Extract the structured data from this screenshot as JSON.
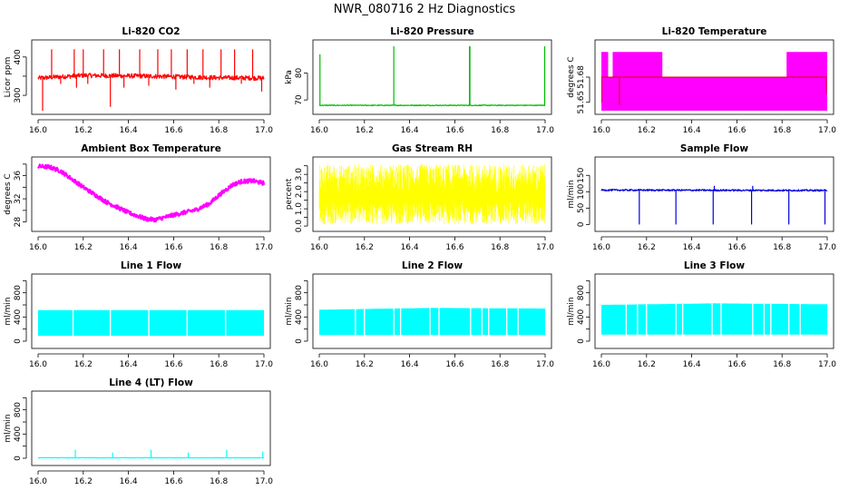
{
  "page": {
    "title": "NWR_080716  2 Hz Diagnostics"
  },
  "chart_data": [
    {
      "id": "co2",
      "type": "line",
      "title": "Li-820 CO2",
      "xlabel": "",
      "ylabel": "Licor ppm",
      "color": "#ff0000",
      "xlim": [
        16.0,
        17.0
      ],
      "xticks": [
        16.0,
        16.2,
        16.4,
        16.6,
        16.8,
        17.0
      ],
      "ylim": [
        260,
        435
      ],
      "yticks": [
        300,
        350,
        400
      ],
      "yticklabels": [
        "300",
        "",
        "400"
      ],
      "baseline": [
        [
          16.0,
          345
        ],
        [
          16.2,
          352
        ],
        [
          16.5,
          350
        ],
        [
          16.8,
          346
        ],
        [
          17.0,
          345
        ]
      ],
      "noise": 6,
      "spikes": [
        [
          16.02,
          260
        ],
        [
          16.06,
          420
        ],
        [
          16.1,
          330
        ],
        [
          16.16,
          420
        ],
        [
          16.17,
          320
        ],
        [
          16.2,
          420
        ],
        [
          16.22,
          330
        ],
        [
          16.29,
          420
        ],
        [
          16.32,
          270
        ],
        [
          16.36,
          420
        ],
        [
          16.38,
          320
        ],
        [
          16.45,
          420
        ],
        [
          16.49,
          325
        ],
        [
          16.53,
          420
        ],
        [
          16.59,
          420
        ],
        [
          16.61,
          315
        ],
        [
          16.66,
          420
        ],
        [
          16.69,
          330
        ],
        [
          16.73,
          420
        ],
        [
          16.76,
          320
        ],
        [
          16.81,
          420
        ],
        [
          16.87,
          420
        ],
        [
          16.9,
          330
        ],
        [
          16.95,
          420
        ],
        [
          16.99,
          310
        ]
      ]
    },
    {
      "id": "pressure",
      "type": "line",
      "title": "Li-820 Pressure",
      "xlabel": "",
      "ylabel": "kPa",
      "color": "#00bb00",
      "xlim": [
        16.0,
        17.0
      ],
      "xticks": [
        16.0,
        16.2,
        16.4,
        16.6,
        16.8,
        17.0
      ],
      "ylim": [
        66,
        91
      ],
      "yticks": [
        70,
        80
      ],
      "yticklabels": [
        "70",
        "80"
      ],
      "baseline": [
        [
          16.0,
          68.0
        ],
        [
          17.0,
          68.0
        ]
      ],
      "noise": 0.15,
      "spikes": [
        [
          16.003,
          87
        ],
        [
          16.33,
          90
        ],
        [
          16.665,
          90
        ],
        [
          16.667,
          90
        ],
        [
          16.998,
          90
        ]
      ]
    },
    {
      "id": "temperature",
      "type": "area",
      "title": "Li-820 Temperature",
      "xlabel": "",
      "ylabel": "degrees C",
      "color": "#ff00ff",
      "xlim": [
        16.0,
        17.0
      ],
      "xticks": [
        16.0,
        16.2,
        16.4,
        16.6,
        16.8,
        17.0
      ],
      "ylim": [
        51.64,
        51.72
      ],
      "yticks": [
        51.65,
        51.68
      ],
      "yticklabels": [
        "51.65",
        "51.68"
      ],
      "fill_bottom": 51.64,
      "level_low": 51.68,
      "level_high": 51.71,
      "high_ranges": [
        [
          16.0,
          16.03
        ],
        [
          16.05,
          16.27
        ],
        [
          16.82,
          17.0
        ]
      ],
      "red_marks": [
        [
          16.002,
          51.65
        ],
        [
          16.08,
          51.647
        ],
        [
          16.996,
          51.66
        ]
      ]
    },
    {
      "id": "ambient",
      "type": "line",
      "title": "Ambient Box Temperature",
      "xlabel": "",
      "ylabel": "degrees C",
      "color": "#ff00ff",
      "xlim": [
        16.0,
        17.0
      ],
      "xticks": [
        16.0,
        16.2,
        16.4,
        16.6,
        16.8,
        17.0
      ],
      "ylim": [
        27.0,
        38.6
      ],
      "yticks": [
        28,
        30,
        32,
        34,
        36,
        38
      ],
      "yticklabels": [
        "28",
        "",
        "32",
        "",
        "36",
        ""
      ],
      "baseline": [
        [
          16.0,
          37.6
        ],
        [
          16.05,
          37.5
        ],
        [
          16.1,
          36.8
        ],
        [
          16.2,
          34.0
        ],
        [
          16.3,
          31.5
        ],
        [
          16.4,
          29.6
        ],
        [
          16.48,
          28.5
        ],
        [
          16.52,
          28.4
        ],
        [
          16.6,
          29.2
        ],
        [
          16.7,
          30.1
        ],
        [
          16.76,
          31.2
        ],
        [
          16.8,
          32.6
        ],
        [
          16.86,
          34.4
        ],
        [
          16.9,
          35.0
        ],
        [
          16.95,
          35.1
        ],
        [
          17.0,
          34.7
        ]
      ],
      "noise": 0.35,
      "spikes": []
    },
    {
      "id": "rh",
      "type": "line",
      "title": "Gas Stream RH",
      "xlabel": "",
      "ylabel": "percent",
      "color": "#ffff00",
      "xlim": [
        16.0,
        17.0
      ],
      "xticks": [
        16.0,
        16.2,
        16.4,
        16.6,
        16.8,
        17.0
      ],
      "ylim": [
        -0.1,
        3.8
      ],
      "yticks": [
        0.0,
        0.5,
        1.0,
        1.5,
        2.0,
        2.5,
        3.0,
        3.5
      ],
      "yticklabels": [
        "0.0",
        "",
        "1.0",
        "",
        "2.0",
        "",
        "3.0",
        ""
      ],
      "band_low": 0.1,
      "band_high": 3.6,
      "center": 1.9
    },
    {
      "id": "sample",
      "type": "line",
      "title": "Sample Flow",
      "xlabel": "",
      "ylabel": "ml/min",
      "color": "#0000dd",
      "xlim": [
        16.0,
        17.0
      ],
      "xticks": [
        16.0,
        16.2,
        16.4,
        16.6,
        16.8,
        17.0
      ],
      "ylim": [
        -10,
        195
      ],
      "yticks": [
        0,
        50,
        100,
        150
      ],
      "yticklabels": [
        "0",
        "50",
        "100",
        "150"
      ],
      "baseline": [
        [
          16.0,
          105
        ],
        [
          17.0,
          104
        ]
      ],
      "noise": 2.5,
      "spikes": [
        [
          16.168,
          0
        ],
        [
          16.33,
          0
        ],
        [
          16.495,
          0
        ],
        [
          16.665,
          0
        ],
        [
          16.83,
          0
        ],
        [
          16.99,
          0
        ],
        [
          16.5,
          118
        ],
        [
          16.67,
          118
        ]
      ]
    },
    {
      "id": "line1",
      "type": "area",
      "title": "Line 1 Flow",
      "xlabel": "",
      "ylabel": "ml/min",
      "color": "#00ffff",
      "xlim": [
        16.0,
        17.0
      ],
      "xticks": [
        16.0,
        16.2,
        16.4,
        16.6,
        16.8,
        17.0
      ],
      "ylim": [
        -60,
        1050
      ],
      "yticks": [
        0,
        200,
        400,
        600,
        800,
        1000
      ],
      "yticklabels": [
        "0",
        "",
        "400",
        "",
        "800",
        ""
      ],
      "band_low": [
        [
          16.0,
          90
        ],
        [
          17.0,
          90
        ]
      ],
      "band_high": [
        [
          16.0,
          515
        ],
        [
          17.0,
          515
        ]
      ],
      "gaps": [
        16.155,
        16.32,
        16.49,
        16.66,
        16.83
      ]
    },
    {
      "id": "line2",
      "type": "area",
      "title": "Line 2 Flow",
      "xlabel": "",
      "ylabel": "ml/min",
      "color": "#00ffff",
      "xlim": [
        16.0,
        17.0
      ],
      "xticks": [
        16.0,
        16.2,
        16.4,
        16.6,
        16.8,
        17.0
      ],
      "ylim": [
        -60,
        1050
      ],
      "yticks": [
        0,
        200,
        400,
        600,
        800,
        1000
      ],
      "yticklabels": [
        "0",
        "",
        "400",
        "",
        "800",
        ""
      ],
      "band_low": [
        [
          16.0,
          100
        ],
        [
          17.0,
          100
        ]
      ],
      "band_high": [
        [
          16.0,
          520
        ],
        [
          16.5,
          550
        ],
        [
          17.0,
          540
        ]
      ],
      "gaps": [
        16.16,
        16.2,
        16.33,
        16.36,
        16.49,
        16.53,
        16.67,
        16.72,
        16.75,
        16.83,
        16.88
      ]
    },
    {
      "id": "line3",
      "type": "area",
      "title": "Line 3 Flow",
      "xlabel": "",
      "ylabel": "ml/min",
      "color": "#00ffff",
      "xlim": [
        16.0,
        17.0
      ],
      "xticks": [
        16.0,
        16.2,
        16.4,
        16.6,
        16.8,
        17.0
      ],
      "ylim": [
        -60,
        1050
      ],
      "yticks": [
        0,
        200,
        400,
        600,
        800,
        1000
      ],
      "yticklabels": [
        "0",
        "",
        "400",
        "",
        "800",
        ""
      ],
      "band_low": [
        [
          16.0,
          110
        ],
        [
          17.0,
          110
        ]
      ],
      "band_high": [
        [
          16.0,
          600
        ],
        [
          16.5,
          625
        ],
        [
          17.0,
          610
        ]
      ],
      "gaps": [
        16.11,
        16.16,
        16.2,
        16.33,
        16.36,
        16.49,
        16.53,
        16.67,
        16.72,
        16.75,
        16.83,
        16.88
      ]
    },
    {
      "id": "line4",
      "type": "line",
      "title": "Line 4 (LT) Flow",
      "xlabel": "",
      "ylabel": "ml/min",
      "color": "#00ffff",
      "xlim": [
        16.0,
        17.0
      ],
      "xticks": [
        16.0,
        16.2,
        16.4,
        16.6,
        16.8,
        17.0
      ],
      "ylim": [
        -60,
        1050
      ],
      "yticks": [
        0,
        200,
        400,
        600,
        800,
        1000
      ],
      "yticklabels": [
        "0",
        "",
        "400",
        "",
        "800",
        ""
      ],
      "baseline": [
        [
          16.0,
          8
        ],
        [
          17.0,
          8
        ]
      ],
      "noise": 3,
      "spikes": [
        [
          16.165,
          140
        ],
        [
          16.33,
          95
        ],
        [
          16.5,
          140
        ],
        [
          16.665,
          95
        ],
        [
          16.835,
          140
        ],
        [
          16.995,
          110
        ]
      ]
    }
  ]
}
